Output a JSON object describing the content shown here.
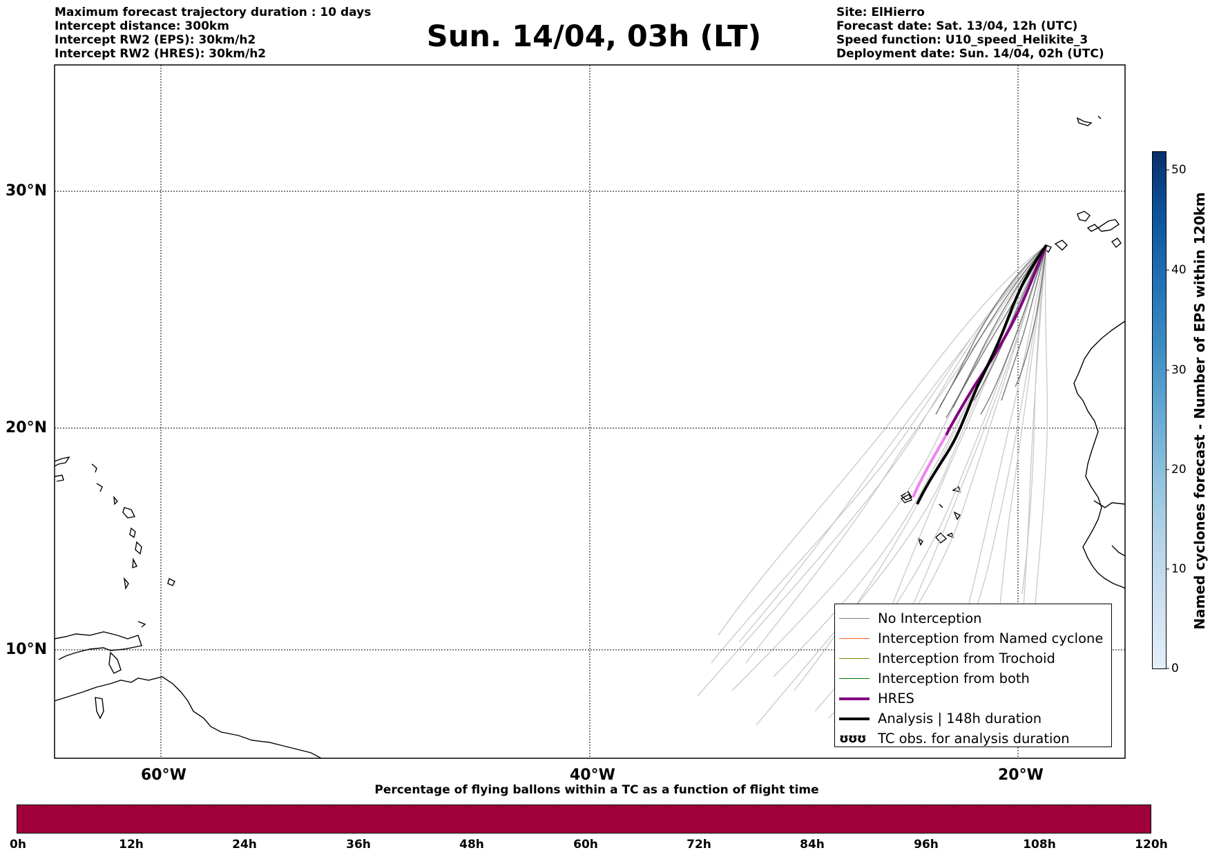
{
  "header_left": [
    "Maximum forecast trajectory duration : 10 days",
    "Intercept distance: 300km",
    "Intercept RW2 (EPS):  30km/h2",
    "Intercept RW2 (HRES): 30km/h2"
  ],
  "title": "Sun. 14/04, 03h (LT)",
  "header_right": [
    "Site: ElHierro",
    "Forecast date: Sat. 13/04, 12h (UTC)",
    "Speed function: U10_speed_Helikite_3",
    "Deployment date: Sun. 14/04, 02h (UTC)"
  ],
  "map": {
    "lat_labels": [
      "30°N",
      "20°N",
      "10°N"
    ],
    "lon_labels": [
      "60°W",
      "40°W",
      "20°W"
    ],
    "legend": [
      {
        "label": "No Interception",
        "color": "#808080",
        "style": "thin"
      },
      {
        "label": "Interception from Named cyclone",
        "color": "#ff5a1f",
        "style": "thin"
      },
      {
        "label": "Interception from Trochoid",
        "color": "#808000",
        "style": "thin"
      },
      {
        "label": "Interception from both",
        "color": "#008000",
        "style": "thin"
      },
      {
        "label": "HRES",
        "color": "#800080",
        "style": "thick"
      },
      {
        "label": "Analysis | 148h duration",
        "color": "#000000",
        "style": "thick"
      },
      {
        "label": "TC obs. for analysis duration",
        "color": "#000000",
        "style": "symbol"
      }
    ],
    "tc_symbol": "ʊʊʊ"
  },
  "colorbar_right": {
    "label": "Named cyclones forecast - Number of EPS within 120km",
    "ticks": [
      "50",
      "40",
      "30",
      "20",
      "10",
      "0"
    ]
  },
  "colorbar_bottom": {
    "title": "Percentage of flying ballons within a TC as a function of flight time",
    "ticks": [
      "0h",
      "12h",
      "24h",
      "36h",
      "48h",
      "60h",
      "72h",
      "84h",
      "96h",
      "108h",
      "120h"
    ],
    "color": "#a0003a"
  }
}
